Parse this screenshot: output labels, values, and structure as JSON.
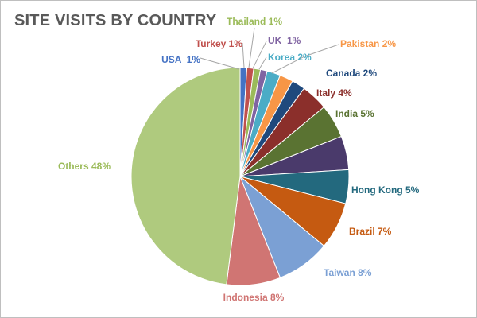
{
  "chart_data": {
    "type": "pie",
    "title": "SITE VISITS BY COUNTRY",
    "slices": [
      {
        "label": "USA",
        "value": 1,
        "display": "USA  1%",
        "color": "#4472C4"
      },
      {
        "label": "Turkey",
        "value": 1,
        "display": "Turkey 1%",
        "color": "#C0504D"
      },
      {
        "label": "Thailand",
        "value": 1,
        "display": "Thailand 1%",
        "color": "#9BBB59"
      },
      {
        "label": "UK",
        "value": 1,
        "display": "UK  1%",
        "color": "#8064A2"
      },
      {
        "label": "Korea",
        "value": 2,
        "display": "Korea 2%",
        "color": "#4BACC6"
      },
      {
        "label": "Pakistan",
        "value": 2,
        "display": "Pakistan 2%",
        "color": "#F79646"
      },
      {
        "label": "Canada",
        "value": 2,
        "display": "Canada 2%",
        "color": "#1F497D"
      },
      {
        "label": "Italy",
        "value": 4,
        "display": "Italy 4%",
        "color": "#8B2F2B"
      },
      {
        "label": "India",
        "value": 5,
        "display": "India 5%",
        "color": "#5A7332"
      },
      {
        "label": "",
        "value": 5,
        "display": "",
        "color": "#4A3A6B"
      },
      {
        "label": "Hong Kong",
        "value": 5,
        "display": "Hong Kong 5%",
        "color": "#23697E"
      },
      {
        "label": "Brazil",
        "value": 7,
        "display": "Brazil 7%",
        "color": "#C55A11"
      },
      {
        "label": "Taiwan",
        "value": 8,
        "display": "Taiwan 8%",
        "color": "#7BA0D4"
      },
      {
        "label": "Indonesia",
        "value": 8,
        "display": "Indonesia 8%",
        "color": "#D07573"
      },
      {
        "label": "Others",
        "value": 48,
        "display": "Others 48%",
        "color": "#AFCA7E"
      }
    ],
    "start_angle_deg": 0,
    "direction": "clockwise",
    "legend": "none",
    "data_labels": "outside"
  }
}
